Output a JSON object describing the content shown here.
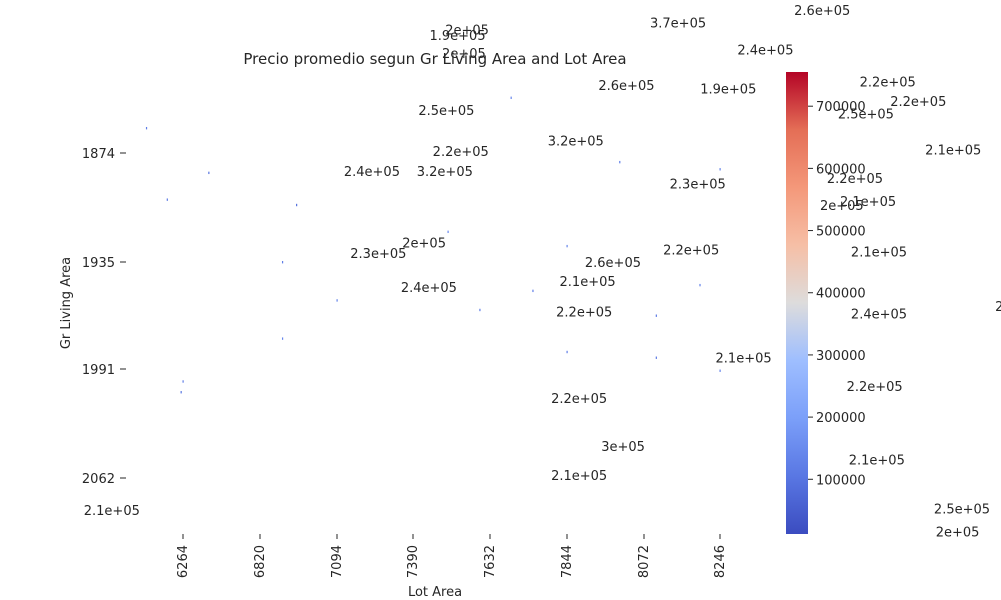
{
  "chart_data": {
    "type": "heatmap",
    "title": "Precio promedio segun Gr Living Area and Lot Area",
    "xlabel": "Lot Area",
    "ylabel": "Gr Living Area",
    "x_tick_labels": [
      "6264",
      "6820",
      "7094",
      "7390",
      "7632",
      "7844",
      "8072",
      "8246"
    ],
    "y_tick_labels": [
      "1874",
      "1935",
      "1991",
      "2062"
    ],
    "colormap": "coolwarm",
    "colorbar": {
      "ticks": [
        100000,
        200000,
        300000,
        400000,
        500000,
        600000,
        700000
      ],
      "tick_labels": [
        "100000",
        "200000",
        "300000",
        "400000",
        "500000",
        "600000",
        "700000"
      ],
      "range": [
        12000,
        755000
      ],
      "color_low": "#3b4cc0",
      "color_high": "#b40426"
    },
    "cells": [
      {
        "lot_area": 6000,
        "gr_living_area": 1860,
        "price": 120000
      },
      {
        "lot_area": 6150,
        "gr_living_area": 1900,
        "price": 110000
      },
      {
        "lot_area": 6450,
        "gr_living_area": 1885,
        "price": 100000
      },
      {
        "lot_area": 6950,
        "gr_living_area": 1903,
        "price": 90000
      },
      {
        "lot_area": 7690,
        "gr_living_area": 1843,
        "price": 140000
      },
      {
        "lot_area": 8000,
        "gr_living_area": 1879,
        "price": 120000
      },
      {
        "lot_area": 8246,
        "gr_living_area": 1883,
        "price": 130000
      },
      {
        "lot_area": 7500,
        "gr_living_area": 1918,
        "price": 150000
      },
      {
        "lot_area": 7844,
        "gr_living_area": 1926,
        "price": 140000
      },
      {
        "lot_area": 6900,
        "gr_living_area": 1935,
        "price": 120000
      },
      {
        "lot_area": 8200,
        "gr_living_area": 1947,
        "price": 130000
      },
      {
        "lot_area": 7750,
        "gr_living_area": 1950,
        "price": 120000
      },
      {
        "lot_area": 7094,
        "gr_living_area": 1955,
        "price": 130000
      },
      {
        "lot_area": 7600,
        "gr_living_area": 1960,
        "price": 120000
      },
      {
        "lot_area": 8100,
        "gr_living_area": 1963,
        "price": 110000
      },
      {
        "lot_area": 6900,
        "gr_living_area": 1975,
        "price": 140000
      },
      {
        "lot_area": 7844,
        "gr_living_area": 1982,
        "price": 120000
      },
      {
        "lot_area": 8100,
        "gr_living_area": 1985,
        "price": 110000
      },
      {
        "lot_area": 8246,
        "gr_living_area": 1992,
        "price": 130000
      },
      {
        "lot_area": 6264,
        "gr_living_area": 1999,
        "price": 120000
      },
      {
        "lot_area": 6250,
        "gr_living_area": 2006,
        "price": 100000
      }
    ],
    "annotations": [
      {
        "text": "2e+05",
        "lot_area": 7560,
        "gr_living_area": 1805
      },
      {
        "text": "1.9e+05",
        "lot_area": 7530,
        "gr_living_area": 1808
      },
      {
        "text": "2e+05",
        "lot_area": 7550,
        "gr_living_area": 1818
      },
      {
        "text": "3.7e+05",
        "lot_area": 8150,
        "gr_living_area": 1801
      },
      {
        "text": "2.6e+05",
        "lot_area": 8480,
        "gr_living_area": 1794
      },
      {
        "text": "2.4e+05",
        "lot_area": 8350,
        "gr_living_area": 1816
      },
      {
        "text": "2.6e+05",
        "lot_area": 8020,
        "gr_living_area": 1836
      },
      {
        "text": "1.9e+05",
        "lot_area": 8265,
        "gr_living_area": 1838
      },
      {
        "text": "2.2e+05",
        "lot_area": 8630,
        "gr_living_area": 1834
      },
      {
        "text": "2.2e+05",
        "lot_area": 8700,
        "gr_living_area": 1845
      },
      {
        "text": "2.5e+05",
        "lot_area": 8580,
        "gr_living_area": 1852
      },
      {
        "text": "2.5e+05",
        "lot_area": 7495,
        "gr_living_area": 1850
      },
      {
        "text": "3.2e+05",
        "lot_area": 7870,
        "gr_living_area": 1867
      },
      {
        "text": "2.2e+05",
        "lot_area": 7540,
        "gr_living_area": 1873
      },
      {
        "text": "2.1e+05",
        "lot_area": 8780,
        "gr_living_area": 1872
      },
      {
        "text": "2.4e+05",
        "lot_area": 7230,
        "gr_living_area": 1884
      },
      {
        "text": "3.2e+05",
        "lot_area": 7490,
        "gr_living_area": 1884
      },
      {
        "text": "2.2e+05",
        "lot_area": 8555,
        "gr_living_area": 1888
      },
      {
        "text": "2.3e+05",
        "lot_area": 8195,
        "gr_living_area": 1891
      },
      {
        "text": "2e+05",
        "lot_area": 8525,
        "gr_living_area": 1903
      },
      {
        "text": "2.1e+05",
        "lot_area": 8585,
        "gr_living_area": 1901
      },
      {
        "text": "2e+05",
        "lot_area": 7425,
        "gr_living_area": 1924
      },
      {
        "text": "2.3e+05",
        "lot_area": 7255,
        "gr_living_area": 1930
      },
      {
        "text": "2.2e+05",
        "lot_area": 8180,
        "gr_living_area": 1928
      },
      {
        "text": "2.1e+05",
        "lot_area": 8610,
        "gr_living_area": 1929
      },
      {
        "text": "2.6e+05",
        "lot_area": 7980,
        "gr_living_area": 1935
      },
      {
        "text": "2.1e+05",
        "lot_area": 7905,
        "gr_living_area": 1945
      },
      {
        "text": "2.4e+05",
        "lot_area": 7440,
        "gr_living_area": 1948
      },
      {
        "text": "2.2e+05",
        "lot_area": 7895,
        "gr_living_area": 1961
      },
      {
        "text": "2.4e+05",
        "lot_area": 8610,
        "gr_living_area": 1962
      },
      {
        "text": "2.",
        "lot_area": 8890,
        "gr_living_area": 1958
      },
      {
        "text": "2.1e+05",
        "lot_area": 8300,
        "gr_living_area": 1985
      },
      {
        "text": "2.2e+05",
        "lot_area": 8600,
        "gr_living_area": 2002
      },
      {
        "text": "2.2e+05",
        "lot_area": 7880,
        "gr_living_area": 2010
      },
      {
        "text": "3e+05",
        "lot_area": 8010,
        "gr_living_area": 2041
      },
      {
        "text": "2.1e+05",
        "lot_area": 8605,
        "gr_living_area": 2050
      },
      {
        "text": "2.1e+05",
        "lot_area": 7880,
        "gr_living_area": 2060
      },
      {
        "text": "2.1e+05",
        "lot_area": 5750,
        "gr_living_area": 2083
      },
      {
        "text": "2.5e+05",
        "lot_area": 8800,
        "gr_living_area": 2082
      },
      {
        "text": "2e+05",
        "lot_area": 8790,
        "gr_living_area": 2097
      }
    ]
  }
}
